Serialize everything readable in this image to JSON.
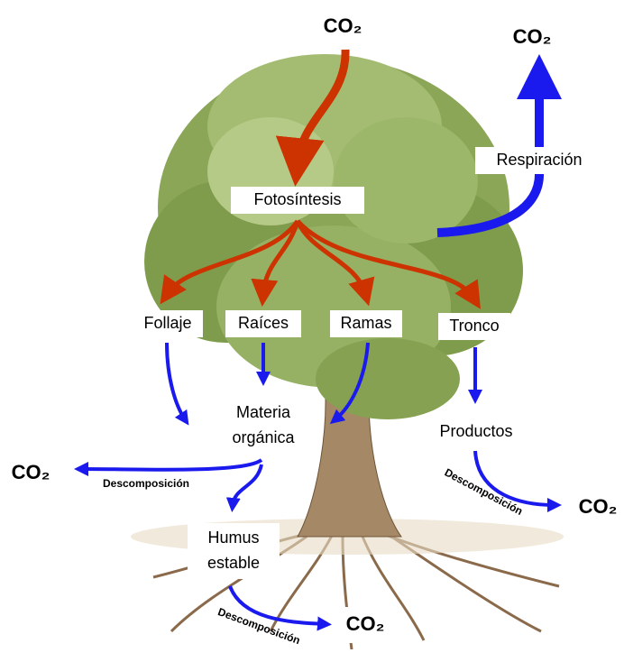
{
  "nodes": {
    "co2_top": "CO₂",
    "co2_respiration": "CO₂",
    "respiration": "Respiración",
    "photosynthesis": "Fotosíntesis",
    "foliage": "Follaje",
    "roots": "Raíces",
    "branches": "Ramas",
    "trunk": "Tronco",
    "organic_matter": [
      "Materia",
      "orgánica"
    ],
    "products": "Productos",
    "co2_left": "CO₂",
    "decomposition_left": "Descomposición",
    "humus": [
      "Humus",
      "estable"
    ],
    "decomposition_right": "Descomposición",
    "co2_right": "CO₂",
    "decomposition_bottom": "Descomposición",
    "co2_bottom": "CO₂"
  }
}
